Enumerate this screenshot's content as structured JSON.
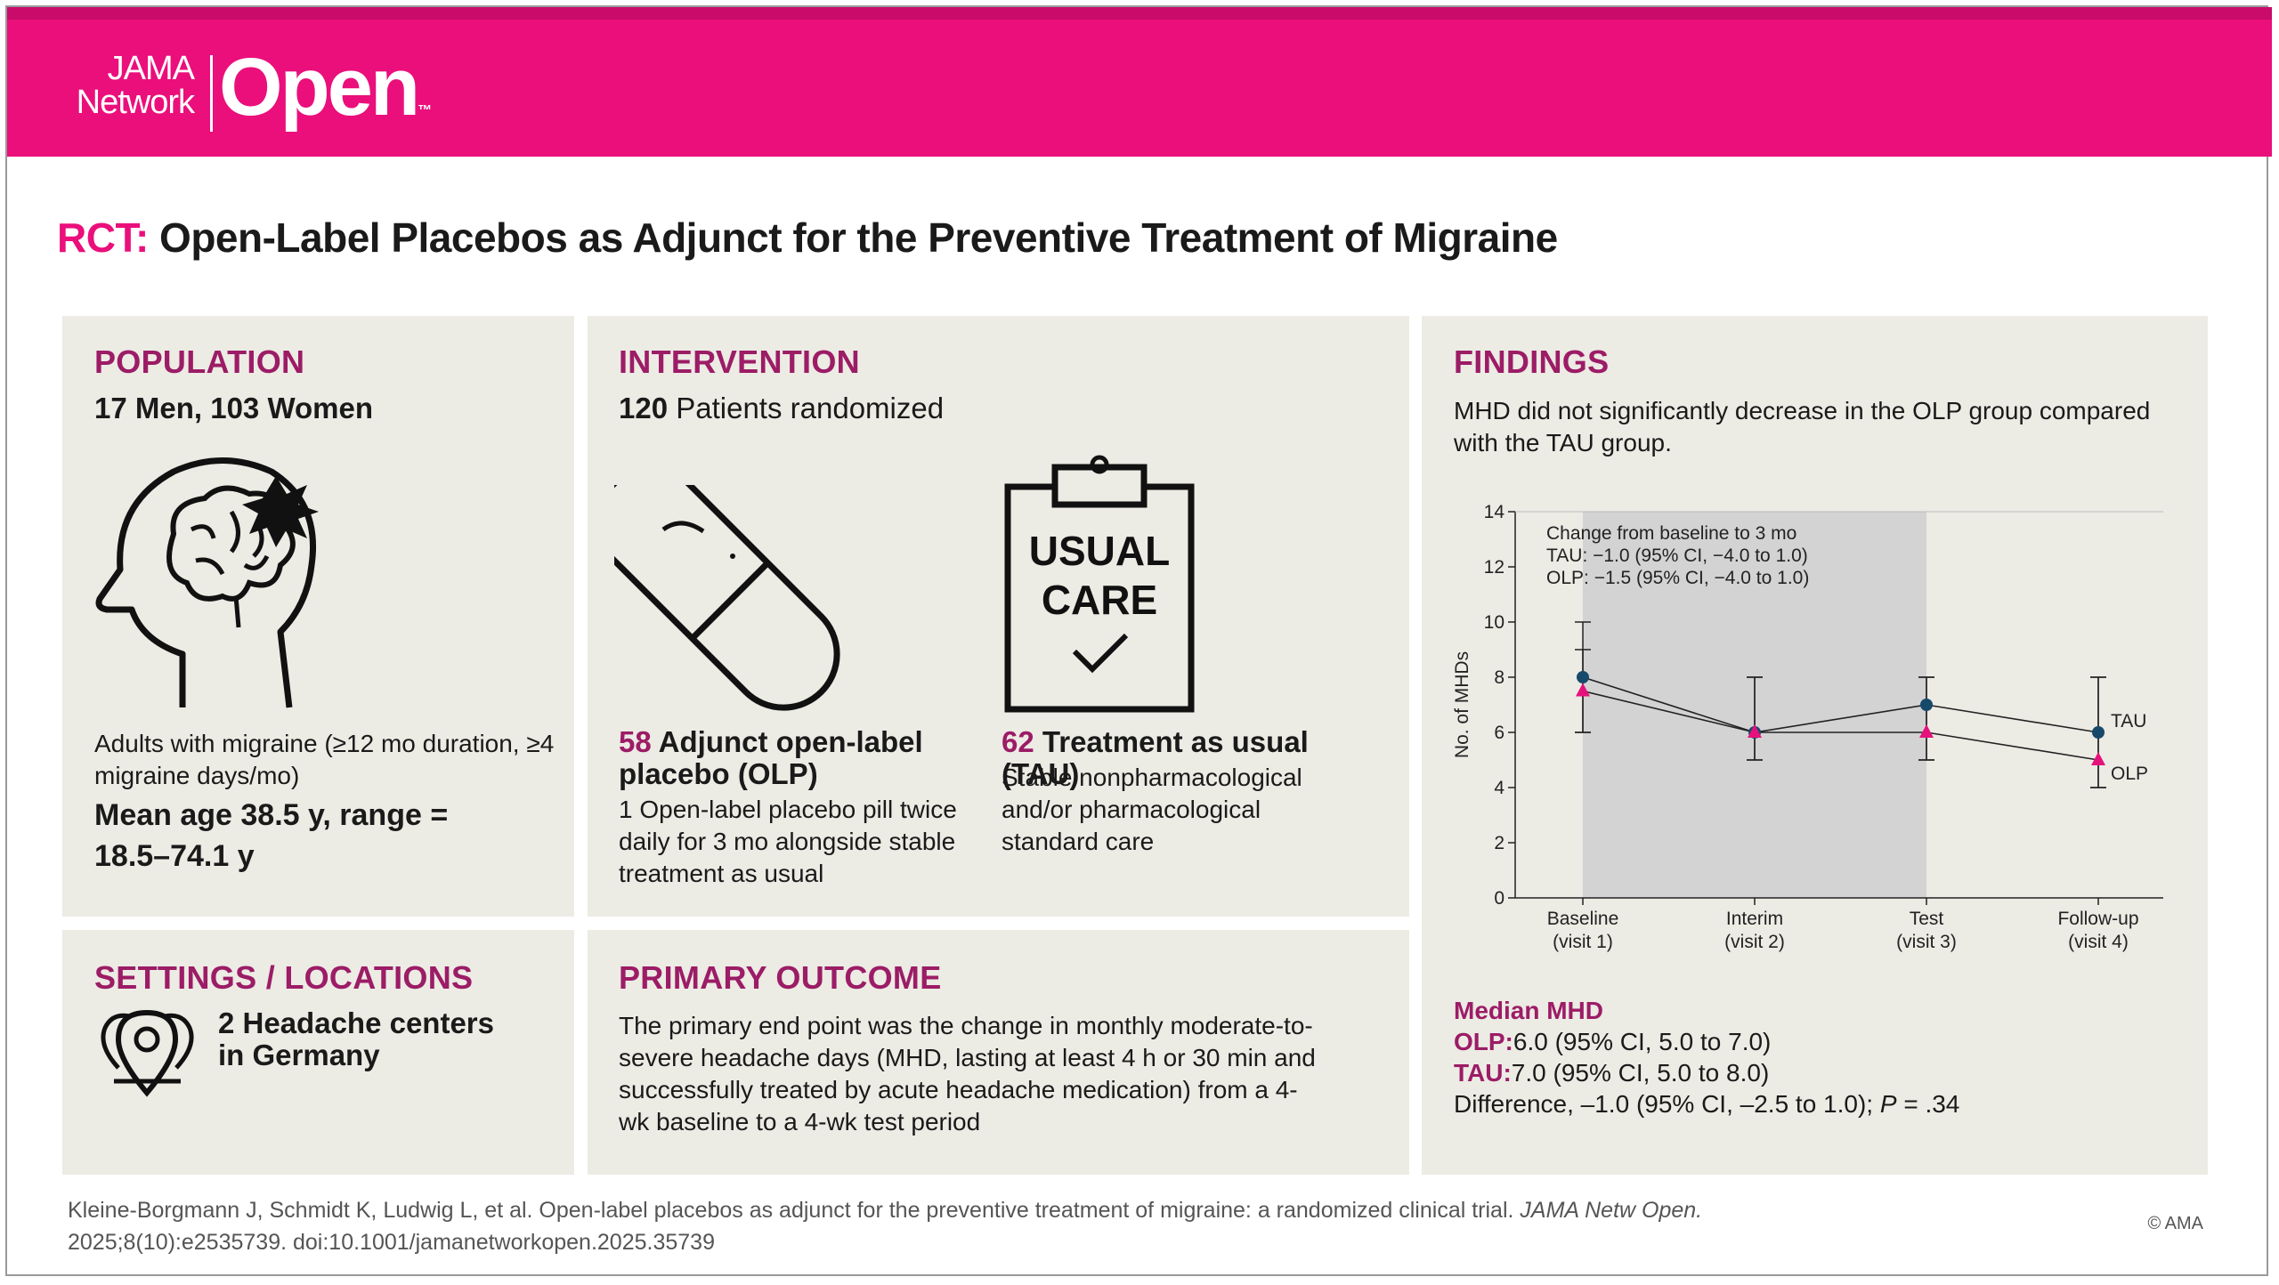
{
  "header": {
    "logo_top": "JAMA",
    "logo_bottom": "Network",
    "logo_main": "Open",
    "trademark": "™"
  },
  "title": {
    "prefix": "RCT:",
    "text": "Open-Label Placebos as Adjunct for the Preventive Treatment of Migraine"
  },
  "population": {
    "heading": "POPULATION",
    "count": "17 Men, 103 Women",
    "description": "Adults with migraine (≥12 mo duration, ≥4 migraine days/mo)",
    "age": "Mean age 38.5 y, range = 18.5–74.1 y"
  },
  "intervention": {
    "heading": "INTERVENTION",
    "randomized_number": "120",
    "randomized_text": "Patients randomized",
    "olp": {
      "number": "58",
      "label": "Adjunct open-label placebo (OLP)",
      "description": "1 Open-label placebo pill twice daily for 3 mo alongside stable treatment as usual"
    },
    "tau": {
      "number": "62",
      "label": "Treatment as usual (TAU)",
      "icon_lines": [
        "USUAL",
        "CARE"
      ],
      "description": "Stable nonpharmacological and/or pharmacological standard care"
    }
  },
  "settings": {
    "heading": "SETTINGS / LOCATIONS",
    "text": "2 Headache centers in Germany"
  },
  "primary_outcome": {
    "heading": "PRIMARY OUTCOME",
    "text": "The primary end point was the change in monthly moderate-to-severe headache days (MHD, lasting at least 4 h or 30 min and successfully treated by acute headache medication) from a 4-wk baseline to a 4-wk test period"
  },
  "findings": {
    "heading": "FINDINGS",
    "summary": "MHD did not significantly decrease in the OLP group compared with the TAU group.",
    "median_heading": "Median MHD",
    "olp_label": "OLP:",
    "olp_text": "6.0 (95% CI, 5.0 to 7.0)",
    "tau_label": "TAU:",
    "tau_text": "7.0 (95% CI, 5.0 to 8.0)",
    "difference_text": "Difference, –1.0 (95% CI, –2.5 to 1.0); ",
    "p_label": "P",
    "p_text": " = .34"
  },
  "chart_data": {
    "type": "line",
    "ylabel": "No. of MHDs",
    "categories": [
      "Baseline (visit 1)",
      "Interim (visit 2)",
      "Test (visit 3)",
      "Follow-up (visit 4)"
    ],
    "annotation": [
      "Change from baseline to 3 mo",
      "TAU: −1.0 (95% CI, −4.0 to 1.0)",
      "OLP: −1.5 (95% CI, −4.0 to 1.0)"
    ],
    "series": [
      {
        "name": "TAU",
        "color": "#17496b",
        "marker": "circle",
        "values": [
          8,
          6,
          7,
          6
        ],
        "lower": [
          6,
          5,
          5,
          4
        ],
        "upper": [
          10,
          8,
          8,
          8
        ]
      },
      {
        "name": "OLP",
        "color": "#e5127c",
        "marker": "triangle",
        "values": [
          7.5,
          6,
          6,
          5
        ],
        "lower": [
          6,
          5,
          5,
          4
        ],
        "upper": [
          9,
          8,
          8,
          8
        ]
      }
    ],
    "ylim": [
      0,
      14
    ],
    "yticks": [
      0,
      2,
      4,
      6,
      8,
      10,
      12,
      14
    ],
    "grid": false
  },
  "footer": {
    "citation": "Kleine-Borgmann J, Schmidt K, Ludwig L, et al. Open-label placebos as adjunct for the preventive treatment of migraine: a randomized clinical trial. ",
    "journal": "JAMA Netw Open.",
    "citation_end": "2025;8(10):e2535739. doi:10.1001/jamanetworkopen.2025.35739",
    "copyright": "© AMA"
  }
}
